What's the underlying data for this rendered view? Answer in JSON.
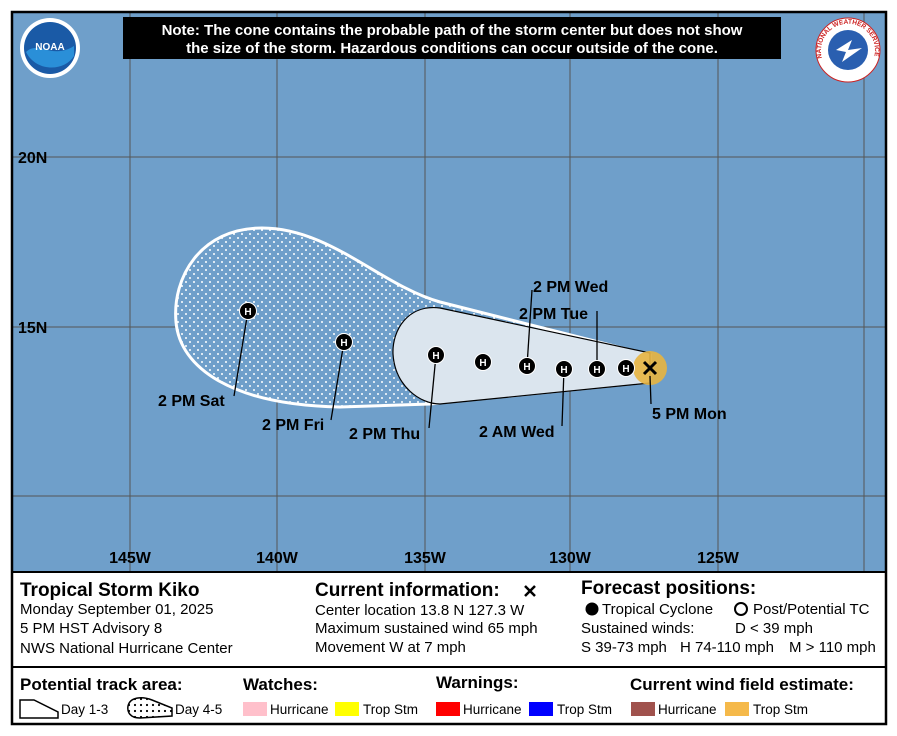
{
  "header": {
    "note": [
      "Note: The cone contains the probable path of the storm center but does not show",
      "the size of the storm. Hazardous conditions can occur outside of the cone."
    ],
    "logos": {
      "noaa": "NOAA",
      "nws": "NATIONAL WEATHER SERVICE"
    }
  },
  "map": {
    "lat_labels": [
      "20N",
      "15N"
    ],
    "lon_labels": [
      "145W",
      "140W",
      "135W",
      "130W",
      "125W"
    ],
    "forecast_points": [
      {
        "label": "2 PM Sat",
        "symbol": "H"
      },
      {
        "label": "2 PM Fri",
        "symbol": "H"
      },
      {
        "label": "2 PM Thu",
        "symbol": "H"
      },
      {
        "symbol": "H"
      },
      {
        "label": "2 PM Wed",
        "symbol": "H"
      },
      {
        "label": "2 AM Wed",
        "symbol": "H"
      },
      {
        "label": "2 PM Tue",
        "symbol": "H"
      },
      {
        "symbol": "H"
      }
    ],
    "current_label": "5 PM Mon"
  },
  "storm": {
    "name": "Tropical Storm Kiko",
    "date": "Monday September 01, 2025",
    "advisory": "5 PM HST Advisory 8",
    "center": "NWS National Hurricane Center"
  },
  "current_info": {
    "title": "Current information:",
    "location": "Center location 13.8 N 127.3 W",
    "wind": "Maximum sustained wind 65 mph",
    "movement": "Movement W at 7 mph"
  },
  "forecast_info": {
    "title": "Forecast positions:",
    "tropical": "Tropical Cyclone",
    "post": "Post/Potential TC",
    "winds_title": "Sustained winds:",
    "d": "D < 39 mph",
    "s": "S 39-73 mph",
    "h": "H 74-110 mph",
    "m": "M > 110 mph"
  },
  "legend": {
    "track_title": "Potential track area:",
    "day13": "Day 1-3",
    "day45": "Day 4-5",
    "watches_title": "Watches:",
    "watch_hurricane": "Hurricane",
    "watch_ts": "Trop Stm",
    "warnings_title": "Warnings:",
    "warning_hurricane": "Hurricane",
    "warning_ts": "Trop Stm",
    "wind_title": "Current wind field estimate:",
    "wind_hurricane": "Hurricane",
    "wind_ts": "Trop Stm"
  }
}
